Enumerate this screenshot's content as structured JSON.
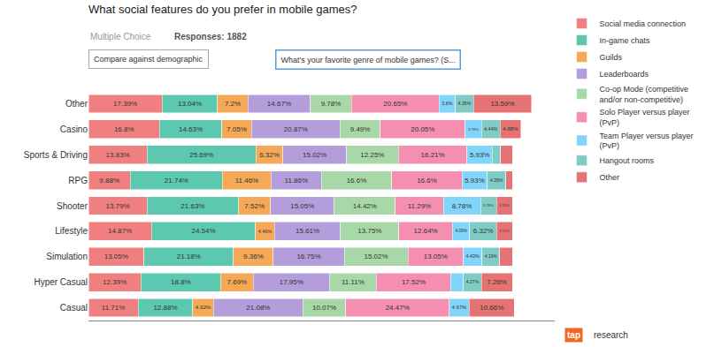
{
  "chart_data": {
    "type": "bar",
    "orientation": "horizontal",
    "stacked": true,
    "title": "What social features do you prefer in mobile games?",
    "subtitle": "Multiple Choice",
    "annotations": [
      "Responses: 1882",
      "Compare against demographic",
      "What's your favorite genre of mobile games? (S...",
      "tap",
      "research"
    ],
    "categories": [
      "Casual",
      "Hyper Casual",
      "Simulation",
      "Lifestyle",
      "Shooter",
      "RPG",
      "Sports & Driving",
      "Casino",
      "Other"
    ],
    "series": [
      {
        "name": "Social media connection",
        "color": "#f08080",
        "values": [
          11.71,
          12.39,
          13.05,
          14.87,
          13.79,
          9.88,
          13.83,
          16.8,
          17.39
        ],
        "value_labels": [
          "11.71%",
          "12.39%",
          "13.05%",
          "14.87%",
          "13.79%",
          "9.88%",
          "13.83%",
          "16.8%",
          "17.39%"
        ]
      },
      {
        "name": "In-game chats",
        "color": "#5bc8af",
        "values": [
          12.88,
          18.8,
          21.18,
          24.54,
          21.63,
          21.74,
          25.69,
          14.63,
          13.04
        ],
        "value_labels": [
          "12.88%",
          "18.8%",
          "21.18%",
          "24.54%",
          "21.63%",
          "21.74%",
          "25.69%",
          "14.63%",
          "13.04%"
        ]
      },
      {
        "name": "Guilds",
        "color": "#f5a857",
        "values": [
          4.92,
          7.69,
          9.36,
          4.46,
          7.52,
          11.46,
          6.32,
          7.05,
          7.2
        ],
        "value_labels": [
          "4.92%",
          "7.69%",
          "9.36%",
          "4.46%",
          "7.52%",
          "11.46%",
          "6.32%",
          "7.05%",
          "7.2%"
        ]
      },
      {
        "name": "Leaderboards",
        "color": "#b39ddb",
        "values": [
          21.08,
          17.95,
          16.75,
          15.61,
          15.05,
          11.86,
          15.02,
          20.87,
          14.67
        ],
        "value_labels": [
          "21.08%",
          "17.95%",
          "16.75%",
          "15.61%",
          "15.05%",
          "11.86%",
          "15.02%",
          "20.87%",
          "14.67%"
        ]
      },
      {
        "name": "Co-op Mode (competitive\nand/or non-competitive)",
        "color": "#a8d8a8",
        "values": [
          10.07,
          11.11,
          15.02,
          13.75,
          14.42,
          16.6,
          12.25,
          9.49,
          9.78
        ],
        "value_labels": [
          "10.07%",
          "11.11%",
          "15.02%",
          "13.75%",
          "14.42%",
          "16.6%",
          "12.25%",
          "9.49%",
          "9.78%"
        ]
      },
      {
        "name": "Solo Player versus player\n(PvP)",
        "color": "#f48fb1",
        "values": [
          24.47,
          17.52,
          13.05,
          12.64,
          11.29,
          16.6,
          16.21,
          20.05,
          20.65
        ],
        "value_labels": [
          "24.47%",
          "17.52%",
          "13.05%",
          "12.64%",
          "11.29%",
          "16.6%",
          "16.21%",
          "20.05%",
          "20.65%"
        ]
      },
      {
        "name": "Team Player versus player\n(PvP)",
        "color": "#81d4fa",
        "values": [
          4.67,
          2.99,
          4.43,
          4.09,
          8.78,
          5.93,
          5.93,
          3.79,
          3.8
        ],
        "value_labels": [
          "4.67%",
          null,
          "4.43%",
          "4.09%",
          "8.78%",
          "5.93%",
          "5.93%",
          "3.79%",
          "3.8%"
        ]
      },
      {
        "name": "Hangout rooms",
        "color": "#80cbc4",
        "values": [
          0.0,
          4.27,
          4.19,
          6.32,
          3.76,
          4.35,
          1.95,
          4.44,
          4.35
        ],
        "value_labels": [
          null,
          "4.27%",
          "4.19%",
          "6.32%",
          "3.76%",
          "4.35%",
          null,
          "4.44%",
          "4.35%"
        ]
      },
      {
        "name": "Other",
        "color": "#e57373",
        "values": [
          10.66,
          7.26,
          2.96,
          3.72,
          3.76,
          1.58,
          2.8,
          4.88,
          13.59
        ],
        "value_labels": [
          "10.66%",
          "7.26%",
          null,
          "3.72%",
          "3.76%",
          null,
          null,
          "4.88%",
          "13.59%"
        ]
      }
    ],
    "xlim": [
      0,
      110
    ],
    "grid": false,
    "legend": "right",
    "data_labels": true,
    "tick_labels": "y"
  }
}
